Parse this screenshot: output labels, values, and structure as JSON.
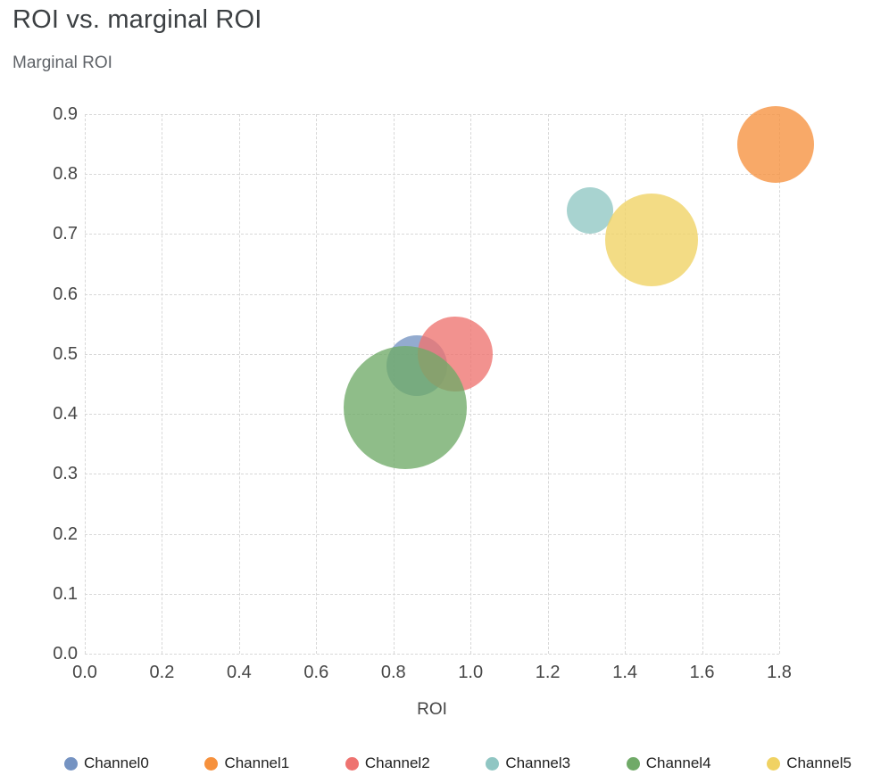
{
  "header": {
    "title": "ROI vs. marginal ROI",
    "y_axis_label": "Marginal ROI"
  },
  "chart_data": {
    "type": "scatter",
    "variant": "bubble",
    "title": "ROI vs. marginal ROI",
    "xlabel": "ROI",
    "ylabel": "Marginal ROI",
    "xlim": [
      0.0,
      1.8
    ],
    "ylim": [
      0.0,
      0.9
    ],
    "x_ticks": [
      "0.0",
      "0.2",
      "0.4",
      "0.6",
      "0.8",
      "1.0",
      "1.2",
      "1.4",
      "1.6",
      "1.8"
    ],
    "y_ticks": [
      "0.0",
      "0.1",
      "0.2",
      "0.3",
      "0.4",
      "0.5",
      "0.6",
      "0.7",
      "0.8",
      "0.9"
    ],
    "grid": "dashed",
    "legend_position": "bottom",
    "bubble_opacity": 0.78,
    "series": [
      {
        "name": "Channel0",
        "color": "#7593c2",
        "x": 0.86,
        "y": 0.48,
        "radius_px": 34
      },
      {
        "name": "Channel1",
        "color": "#f6913d",
        "x": 1.79,
        "y": 0.85,
        "radius_px": 43
      },
      {
        "name": "Channel2",
        "color": "#ee7370",
        "x": 0.96,
        "y": 0.5,
        "radius_px": 42
      },
      {
        "name": "Channel3",
        "color": "#90c6c3",
        "x": 1.31,
        "y": 0.74,
        "radius_px": 26
      },
      {
        "name": "Channel4",
        "color": "#70aa68",
        "x": 0.83,
        "y": 0.41,
        "radius_px": 69
      },
      {
        "name": "Channel5",
        "color": "#f0d263",
        "x": 1.47,
        "y": 0.69,
        "radius_px": 52
      }
    ]
  }
}
